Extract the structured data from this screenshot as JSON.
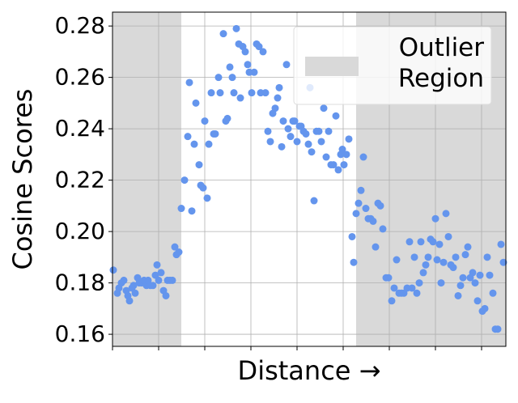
{
  "chart_data": {
    "type": "scatter",
    "ylabel": "Cosine Scores",
    "xlabel": "Distance →",
    "xlim": [
      0,
      486
    ],
    "xticks": [
      0,
      57,
      114,
      171,
      228,
      285,
      342,
      399,
      456
    ],
    "ylim": [
      0.1553,
      0.2854
    ],
    "yticks": [
      0.16,
      0.18,
      {
        "value": 0.2,
        "label": "0.20"
      },
      0.22,
      0.24,
      0.26,
      0.28
    ],
    "grid": true,
    "color": "#6495ed",
    "regions": {
      "name": "Outlier Region",
      "color": "#d9d9d9",
      "spans": [
        [
          0,
          85
        ],
        [
          301,
          486
        ]
      ]
    },
    "legend": "upper right",
    "x": [
      1,
      6,
      8,
      11,
      14,
      17,
      19,
      21,
      24,
      26,
      28,
      31,
      33,
      36,
      39,
      42,
      44,
      47,
      50,
      53,
      55,
      57,
      60,
      63,
      66,
      68,
      71,
      74,
      77,
      79,
      82,
      85,
      89,
      93,
      95,
      98,
      101,
      103,
      107,
      109,
      112,
      114,
      117,
      119,
      122,
      125,
      127,
      131,
      133,
      137,
      140,
      142,
      145,
      148,
      150,
      153,
      156,
      158,
      161,
      164,
      167,
      169,
      172,
      175,
      178,
      181,
      183,
      186,
      189,
      192,
      195,
      198,
      201,
      204,
      206,
      209,
      211,
      215,
      217,
      220,
      223,
      225,
      228,
      231,
      233,
      236,
      239,
      242,
      244,
      246,
      249,
      252,
      255,
      258,
      261,
      264,
      267,
      270,
      273,
      276,
      279,
      282,
      284,
      286,
      289,
      292,
      296,
      298,
      301,
      304,
      307,
      310,
      313,
      316,
      319,
      322,
      325,
      328,
      331,
      334,
      338,
      341,
      345,
      348,
      351,
      354,
      357,
      360,
      364,
      367,
      370,
      373,
      376,
      379,
      381,
      384,
      387,
      390,
      393,
      396,
      399,
      401,
      404,
      406,
      409,
      412,
      415,
      418,
      421,
      424,
      427,
      430,
      433,
      436,
      439,
      442,
      445,
      448,
      451,
      454,
      457,
      460,
      463,
      466,
      470,
      473,
      476,
      480,
      483
    ],
    "values": [
      0.185,
      0.176,
      0.178,
      0.18,
      0.181,
      0.177,
      0.175,
      0.173,
      0.178,
      0.179,
      0.176,
      0.182,
      0.18,
      0.18,
      0.181,
      0.179,
      0.181,
      0.179,
      0.179,
      0.183,
      0.187,
      0.181,
      0.184,
      0.177,
      0.175,
      0.181,
      0.181,
      0.181,
      0.194,
      0.191,
      0.192,
      0.209,
      0.22,
      0.237,
      0.258,
      0.208,
      0.234,
      0.25,
      0.226,
      0.218,
      0.217,
      0.243,
      0.213,
      0.234,
      0.254,
      0.238,
      0.238,
      0.26,
      0.254,
      0.277,
      0.243,
      0.244,
      0.264,
      0.26,
      0.254,
      0.279,
      0.273,
      0.252,
      0.272,
      0.27,
      0.265,
      0.262,
      0.254,
      0.262,
      0.273,
      0.272,
      0.254,
      0.27,
      0.254,
      0.239,
      0.235,
      0.246,
      0.248,
      0.252,
      0.256,
      0.233,
      0.243,
      0.265,
      0.24,
      0.237,
      0.243,
      0.243,
      0.235,
      0.241,
      0.241,
      0.239,
      0.238,
      0.234,
      0.256,
      0.231,
      0.212,
      0.239,
      0.239,
      0.235,
      0.248,
      0.229,
      0.239,
      0.226,
      0.226,
      0.245,
      0.224,
      0.23,
      0.232,
      0.226,
      0.23,
      0.236,
      0.198,
      0.188,
      0.207,
      0.211,
      0.216,
      0.229,
      0.209,
      0.205,
      0.205,
      0.204,
      0.194,
      0.211,
      0.21,
      0.201,
      0.182,
      0.182,
      0.173,
      0.178,
      0.189,
      0.176,
      0.176,
      0.176,
      0.178,
      0.196,
      0.178,
      0.19,
      0.176,
      0.18,
      0.196,
      0.184,
      0.187,
      0.19,
      0.197,
      0.196,
      0.205,
      0.189,
      0.195,
      0.18,
      0.188,
      0.207,
      0.198,
      0.187,
      0.186,
      0.19,
      0.175,
      0.179,
      0.182,
      0.191,
      0.194,
      0.182,
      0.184,
      0.18,
      0.173,
      0.183,
      0.169,
      0.17,
      0.19,
      0.183,
      0.176,
      0.162,
      0.162,
      0.195,
      0.188
    ]
  }
}
